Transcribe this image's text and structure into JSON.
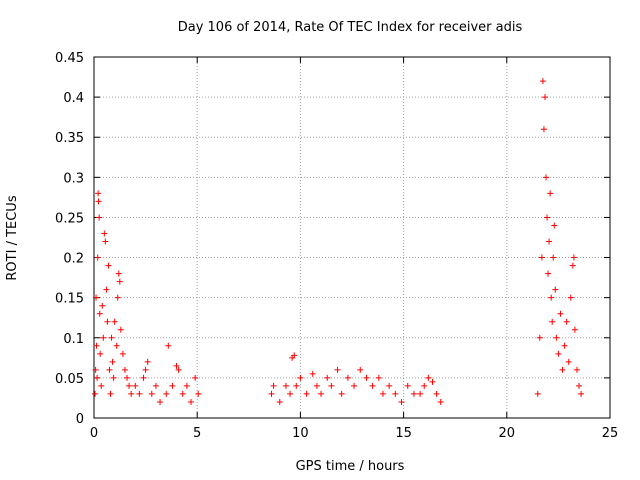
{
  "chart_data": {
    "type": "scatter",
    "title": "Day 106 of 2014, Rate Of TEC Index for receiver adis",
    "xlabel": "GPS time / hours",
    "ylabel": "ROTI / TECUs",
    "xlim": [
      0,
      25
    ],
    "ylim": [
      0,
      0.45
    ],
    "xticks": [
      0,
      5,
      10,
      15,
      20,
      25
    ],
    "yticks": [
      0,
      0.05,
      0.1,
      0.15,
      0.2,
      0.25,
      0.3,
      0.35,
      0.4,
      0.45
    ],
    "xtick_labels": [
      "0",
      "5",
      "10",
      "15",
      "20",
      "25"
    ],
    "ytick_labels": [
      "0",
      "0.05",
      "0.1",
      "0.15",
      "0.2",
      "0.25",
      "0.3",
      "0.35",
      "0.4",
      "0.45"
    ],
    "grid": true,
    "marker": "+",
    "marker_color": "#ff0000",
    "series": [
      {
        "name": "ROTI",
        "points": [
          [
            0.05,
            0.03
          ],
          [
            0.08,
            0.06
          ],
          [
            0.1,
            0.15
          ],
          [
            0.12,
            0.09
          ],
          [
            0.15,
            0.05
          ],
          [
            0.18,
            0.2
          ],
          [
            0.2,
            0.28
          ],
          [
            0.22,
            0.27
          ],
          [
            0.25,
            0.25
          ],
          [
            0.28,
            0.13
          ],
          [
            0.3,
            0.08
          ],
          [
            0.35,
            0.04
          ],
          [
            0.4,
            0.14
          ],
          [
            0.45,
            0.1
          ],
          [
            0.5,
            0.23
          ],
          [
            0.55,
            0.22
          ],
          [
            0.6,
            0.16
          ],
          [
            0.65,
            0.12
          ],
          [
            0.7,
            0.19
          ],
          [
            0.75,
            0.06
          ],
          [
            0.8,
            0.03
          ],
          [
            0.85,
            0.1
          ],
          [
            0.9,
            0.07
          ],
          [
            0.95,
            0.05
          ],
          [
            1.0,
            0.12
          ],
          [
            1.1,
            0.09
          ],
          [
            1.15,
            0.15
          ],
          [
            1.2,
            0.18
          ],
          [
            1.25,
            0.17
          ],
          [
            1.3,
            0.11
          ],
          [
            1.4,
            0.08
          ],
          [
            1.5,
            0.06
          ],
          [
            1.6,
            0.05
          ],
          [
            1.7,
            0.04
          ],
          [
            1.8,
            0.03
          ],
          [
            2.0,
            0.04
          ],
          [
            2.2,
            0.03
          ],
          [
            2.4,
            0.05
          ],
          [
            2.5,
            0.06
          ],
          [
            2.6,
            0.07
          ],
          [
            2.8,
            0.03
          ],
          [
            3.0,
            0.04
          ],
          [
            3.2,
            0.02
          ],
          [
            3.5,
            0.03
          ],
          [
            3.6,
            0.09
          ],
          [
            3.8,
            0.04
          ],
          [
            4.0,
            0.065
          ],
          [
            4.1,
            0.06
          ],
          [
            4.3,
            0.03
          ],
          [
            4.5,
            0.04
          ],
          [
            4.7,
            0.02
          ],
          [
            4.9,
            0.05
          ],
          [
            5.05,
            0.03
          ],
          [
            8.6,
            0.03
          ],
          [
            8.7,
            0.04
          ],
          [
            9.0,
            0.02
          ],
          [
            9.3,
            0.04
          ],
          [
            9.5,
            0.03
          ],
          [
            9.6,
            0.075
          ],
          [
            9.7,
            0.078
          ],
          [
            9.8,
            0.04
          ],
          [
            10.0,
            0.05
          ],
          [
            10.3,
            0.03
          ],
          [
            10.6,
            0.055
          ],
          [
            10.8,
            0.04
          ],
          [
            11.0,
            0.03
          ],
          [
            11.3,
            0.05
          ],
          [
            11.5,
            0.04
          ],
          [
            11.8,
            0.06
          ],
          [
            12.0,
            0.03
          ],
          [
            12.3,
            0.05
          ],
          [
            12.6,
            0.04
          ],
          [
            12.9,
            0.06
          ],
          [
            13.2,
            0.05
          ],
          [
            13.5,
            0.04
          ],
          [
            13.8,
            0.05
          ],
          [
            14.0,
            0.03
          ],
          [
            14.3,
            0.04
          ],
          [
            14.6,
            0.03
          ],
          [
            14.9,
            0.02
          ],
          [
            15.2,
            0.04
          ],
          [
            15.5,
            0.03
          ],
          [
            15.8,
            0.03
          ],
          [
            16.0,
            0.04
          ],
          [
            16.2,
            0.05
          ],
          [
            16.4,
            0.045
          ],
          [
            16.6,
            0.03
          ],
          [
            16.8,
            0.02
          ],
          [
            21.5,
            0.03
          ],
          [
            21.6,
            0.1
          ],
          [
            21.7,
            0.2
          ],
          [
            21.75,
            0.42
          ],
          [
            21.8,
            0.36
          ],
          [
            21.85,
            0.4
          ],
          [
            21.9,
            0.3
          ],
          [
            21.95,
            0.25
          ],
          [
            22.0,
            0.18
          ],
          [
            22.05,
            0.22
          ],
          [
            22.1,
            0.28
          ],
          [
            22.15,
            0.15
          ],
          [
            22.2,
            0.12
          ],
          [
            22.25,
            0.2
          ],
          [
            22.3,
            0.24
          ],
          [
            22.35,
            0.16
          ],
          [
            22.4,
            0.1
          ],
          [
            22.5,
            0.08
          ],
          [
            22.6,
            0.13
          ],
          [
            22.7,
            0.06
          ],
          [
            22.8,
            0.09
          ],
          [
            22.9,
            0.12
          ],
          [
            23.0,
            0.07
          ],
          [
            23.1,
            0.15
          ],
          [
            23.2,
            0.19
          ],
          [
            23.25,
            0.2
          ],
          [
            23.3,
            0.11
          ],
          [
            23.4,
            0.06
          ],
          [
            23.5,
            0.04
          ],
          [
            23.6,
            0.03
          ]
        ]
      }
    ]
  }
}
